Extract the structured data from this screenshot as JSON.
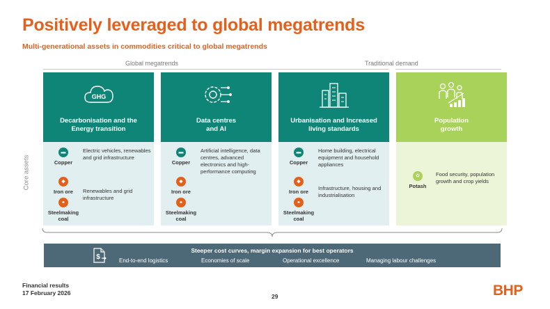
{
  "slide": {
    "title": "Positively leveraged to global megatrends",
    "subtitle": "Multi-generational assets in commodities critical to global megatrends"
  },
  "groups": {
    "global": "Global megatrends",
    "traditional": "Traditional demand"
  },
  "side_label": "Core assets",
  "columns": [
    {
      "heading_line1": "Decarbonisation and the",
      "heading_line2": "Energy transition",
      "icon": "ghg-cloud-icon",
      "icon_text": "GHG",
      "commodities": [
        "Copper",
        "Iron ore",
        "Steelmaking coal"
      ],
      "descriptions": [
        "Electric vehicles, renewables and grid infrastructure",
        "Renewables and grid infrastructure"
      ]
    },
    {
      "heading_line1": "Data centres",
      "heading_line2": "and AI",
      "icon": "ai-chip-icon",
      "commodities": [
        "Copper",
        "Iron ore",
        "Steelmaking coal"
      ],
      "descriptions": [
        "Artificial intelligence, data centres, advanced electronics and high-performance computing"
      ]
    },
    {
      "heading_line1": "Urbanisation and Increased",
      "heading_line2": "living standards",
      "icon": "city-buildings-icon",
      "commodities": [
        "Copper",
        "Iron ore",
        "Steelmaking coal"
      ],
      "descriptions": [
        "Home building, electrical equipment and household appliances",
        "Infrastructure, housing and industrialisation"
      ]
    },
    {
      "heading_line1": "Population",
      "heading_line2": "growth",
      "icon": "population-growth-icon",
      "commodities": [
        "Potash"
      ],
      "descriptions": [
        "Food security, population growth and crop yields"
      ]
    }
  ],
  "bottom_bar": {
    "title": "Steeper cost curves, margin expansion for best operators",
    "icon": "cost-document-icon",
    "items": [
      "End-to-end logistics",
      "Economies of scale",
      "Operational excellence",
      "Managing labour challenges"
    ]
  },
  "footer": {
    "line1": "Financial results",
    "line2": "17 February 2026",
    "page": "29",
    "logo": "BHP"
  },
  "colors": {
    "accent_orange": "#e4611c",
    "teal": "#0f8577",
    "teal_light": "#e2eff0",
    "green": "#a9d25a",
    "green_light": "#edf5d8",
    "slate": "#4d6877"
  }
}
